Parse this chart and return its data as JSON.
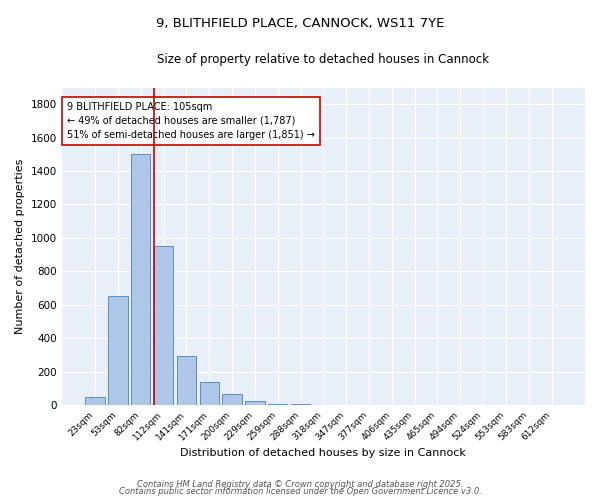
{
  "title_line1": "9, BLITHFIELD PLACE, CANNOCK, WS11 7YE",
  "title_line2": "Size of property relative to detached houses in Cannock",
  "xlabel": "Distribution of detached houses by size in Cannock",
  "ylabel": "Number of detached properties",
  "bar_labels": [
    "23sqm",
    "53sqm",
    "82sqm",
    "112sqm",
    "141sqm",
    "171sqm",
    "200sqm",
    "229sqm",
    "259sqm",
    "288sqm",
    "318sqm",
    "347sqm",
    "377sqm",
    "406sqm",
    "435sqm",
    "465sqm",
    "494sqm",
    "524sqm",
    "553sqm",
    "583sqm",
    "612sqm"
  ],
  "bar_values": [
    47,
    651,
    1500,
    950,
    291,
    138,
    65,
    22,
    8,
    3,
    1,
    1,
    0,
    1,
    0,
    0,
    0,
    0,
    0,
    0,
    0
  ],
  "bar_color": "#aec6e8",
  "bar_edgecolor": "#5a8fc2",
  "bg_color": "#e8eff8",
  "grid_color": "#ffffff",
  "vline_color": "#cc0000",
  "annotation_text": "9 BLITHFIELD PLACE: 105sqm\n← 49% of detached houses are smaller (1,787)\n51% of semi-detached houses are larger (1,851) →",
  "annotation_box_edgecolor": "#cc0000",
  "annotation_box_facecolor": "#ffffff",
  "footer_line1": "Contains HM Land Registry data © Crown copyright and database right 2025.",
  "footer_line2": "Contains public sector information licensed under the Open Government Licence v3.0.",
  "ylim": [
    0,
    1900
  ],
  "yticks": [
    0,
    200,
    400,
    600,
    800,
    1000,
    1200,
    1400,
    1600,
    1800
  ]
}
